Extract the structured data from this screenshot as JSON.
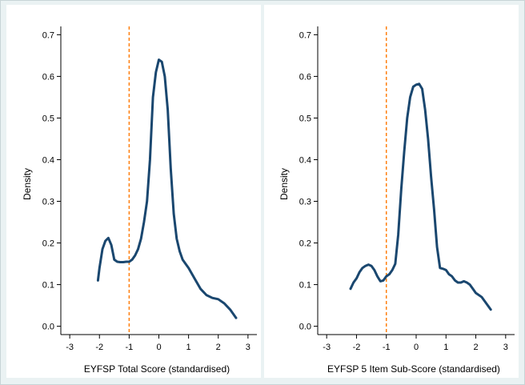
{
  "chart_data": [
    {
      "type": "line",
      "title": "",
      "xlabel": "EYFSP Total Score (standardised)",
      "ylabel": "Density",
      "xlim": [
        -3.3,
        3.3
      ],
      "ylim": [
        -0.02,
        0.72
      ],
      "x_ticks": [
        "-3",
        "-2",
        "-1",
        "0",
        "1",
        "2",
        "3"
      ],
      "y_ticks": [
        "0.0",
        "0.1",
        "0.2",
        "0.3",
        "0.4",
        "0.5",
        "0.6",
        "0.7"
      ],
      "grid": false,
      "line_color": "#1a476f",
      "reference_line": {
        "x": -1,
        "style": "dashed",
        "color": "#ff7f0e"
      },
      "series": [
        {
          "x": [
            -2.05,
            -2.0,
            -1.9,
            -1.8,
            -1.7,
            -1.6,
            -1.5,
            -1.4,
            -1.3,
            -1.2,
            -1.1,
            -1.0,
            -0.9,
            -0.8,
            -0.7,
            -0.6,
            -0.5,
            -0.4,
            -0.3,
            -0.2,
            -0.1,
            0.0,
            0.1,
            0.2,
            0.3,
            0.4,
            0.5,
            0.6,
            0.7,
            0.8,
            0.9,
            1.0,
            1.2,
            1.4,
            1.6,
            1.8,
            2.0,
            2.2,
            2.4,
            2.6
          ],
          "y": [
            0.11,
            0.14,
            0.185,
            0.205,
            0.212,
            0.195,
            0.16,
            0.155,
            0.154,
            0.154,
            0.155,
            0.155,
            0.16,
            0.17,
            0.185,
            0.21,
            0.25,
            0.3,
            0.4,
            0.55,
            0.61,
            0.64,
            0.635,
            0.6,
            0.52,
            0.38,
            0.27,
            0.21,
            0.18,
            0.16,
            0.15,
            0.14,
            0.115,
            0.09,
            0.075,
            0.068,
            0.065,
            0.055,
            0.04,
            0.02
          ]
        }
      ]
    },
    {
      "type": "line",
      "title": "",
      "xlabel": "EYFSP 5 Item Sub-Score (standardised)",
      "ylabel": "Density",
      "xlim": [
        -3.3,
        3.3
      ],
      "ylim": [
        -0.02,
        0.72
      ],
      "x_ticks": [
        "-3",
        "-2",
        "-1",
        "0",
        "1",
        "2",
        "3"
      ],
      "y_ticks": [
        "0.0",
        "0.1",
        "0.2",
        "0.3",
        "0.4",
        "0.5",
        "0.6",
        "0.7"
      ],
      "grid": false,
      "line_color": "#1a476f",
      "reference_line": {
        "x": -1,
        "style": "dashed",
        "color": "#ff7f0e"
      },
      "series": [
        {
          "x": [
            -2.2,
            -2.1,
            -2.0,
            -1.9,
            -1.8,
            -1.7,
            -1.6,
            -1.5,
            -1.4,
            -1.3,
            -1.2,
            -1.1,
            -1.0,
            -0.9,
            -0.8,
            -0.7,
            -0.6,
            -0.5,
            -0.4,
            -0.3,
            -0.2,
            -0.1,
            0.0,
            0.1,
            0.2,
            0.3,
            0.4,
            0.5,
            0.6,
            0.7,
            0.8,
            0.9,
            1.0,
            1.1,
            1.2,
            1.3,
            1.4,
            1.5,
            1.6,
            1.7,
            1.8,
            1.9,
            2.0,
            2.2,
            2.4,
            2.5
          ],
          "y": [
            0.09,
            0.105,
            0.115,
            0.13,
            0.14,
            0.145,
            0.148,
            0.145,
            0.135,
            0.12,
            0.108,
            0.11,
            0.12,
            0.125,
            0.135,
            0.15,
            0.22,
            0.33,
            0.42,
            0.5,
            0.55,
            0.575,
            0.58,
            0.582,
            0.57,
            0.52,
            0.45,
            0.36,
            0.28,
            0.19,
            0.14,
            0.138,
            0.135,
            0.125,
            0.12,
            0.11,
            0.105,
            0.105,
            0.108,
            0.105,
            0.1,
            0.09,
            0.08,
            0.07,
            0.05,
            0.04
          ]
        }
      ]
    }
  ]
}
